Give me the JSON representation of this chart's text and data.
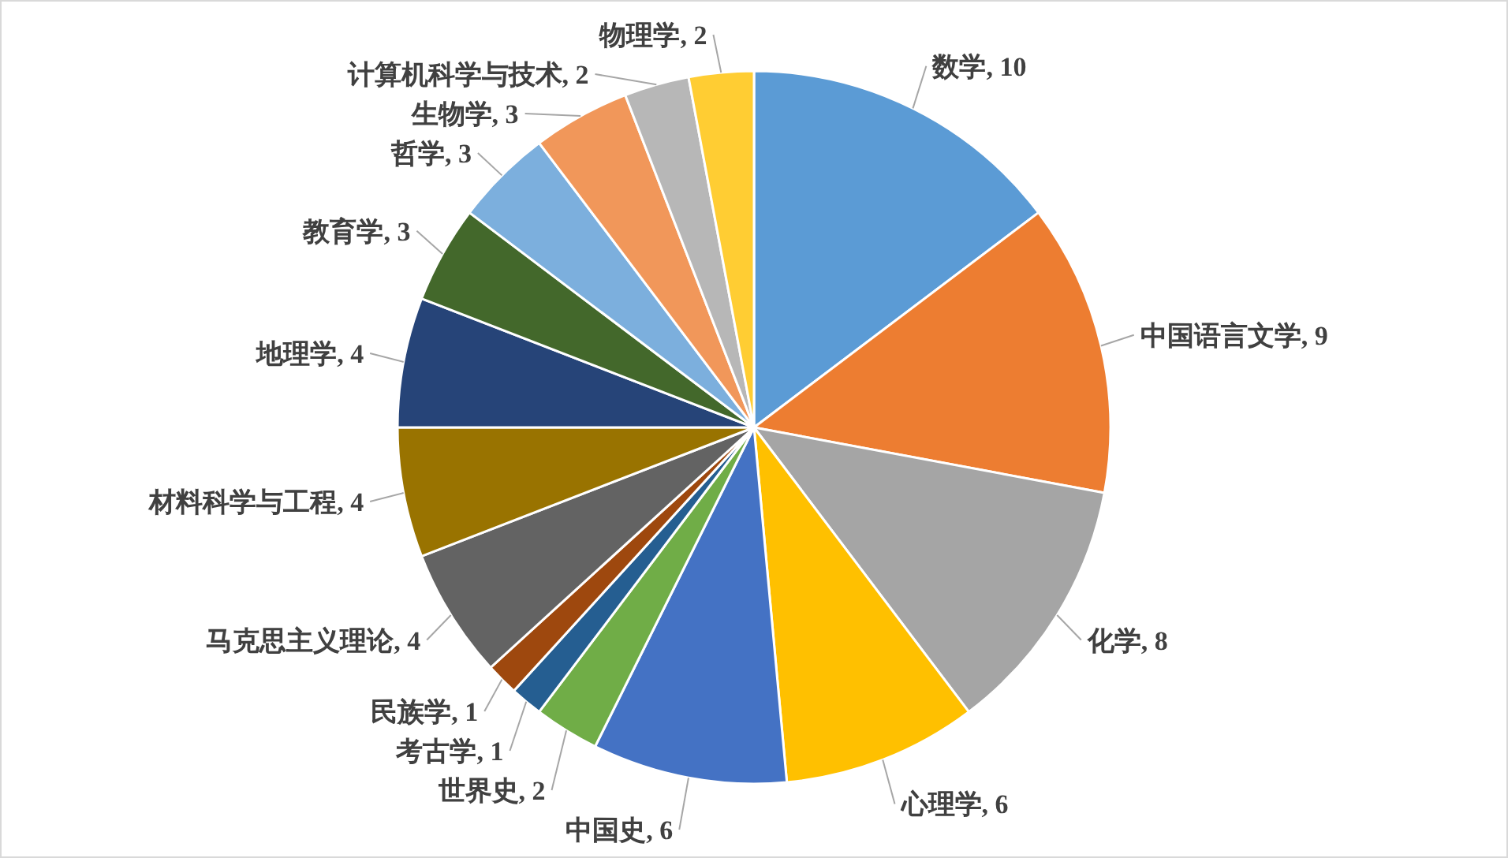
{
  "chart_data": {
    "type": "pie",
    "categories": [
      "数学",
      "中国语言文学",
      "化学",
      "心理学",
      "中国史",
      "世界史",
      "考古学",
      "民族学",
      "马克思主义理论",
      "材料科学与工程",
      "地理学",
      "教育学",
      "哲学",
      "生物学",
      "计算机科学与技术",
      "物理学"
    ],
    "values": [
      10,
      9,
      8,
      6,
      6,
      2,
      1,
      1,
      4,
      4,
      4,
      3,
      3,
      3,
      2,
      2
    ],
    "value_labels": [
      ", 10",
      ", 9",
      ", 8",
      ", 6",
      ", 6",
      ", 2",
      ", 1",
      ", 1",
      ", 4",
      ", 4",
      ", 4",
      ", 3",
      ", 3",
      ", 3",
      ", 2",
      ", 2"
    ],
    "colors": [
      "#5b9bd5",
      "#ed7d31",
      "#a5a5a5",
      "#ffc000",
      "#4472c4",
      "#70ad47",
      "#255e91",
      "#9e480e",
      "#636363",
      "#997300",
      "#264478",
      "#43682b",
      "#7cafdd",
      "#f1975a",
      "#b7b7b7",
      "#ffcd33"
    ]
  }
}
